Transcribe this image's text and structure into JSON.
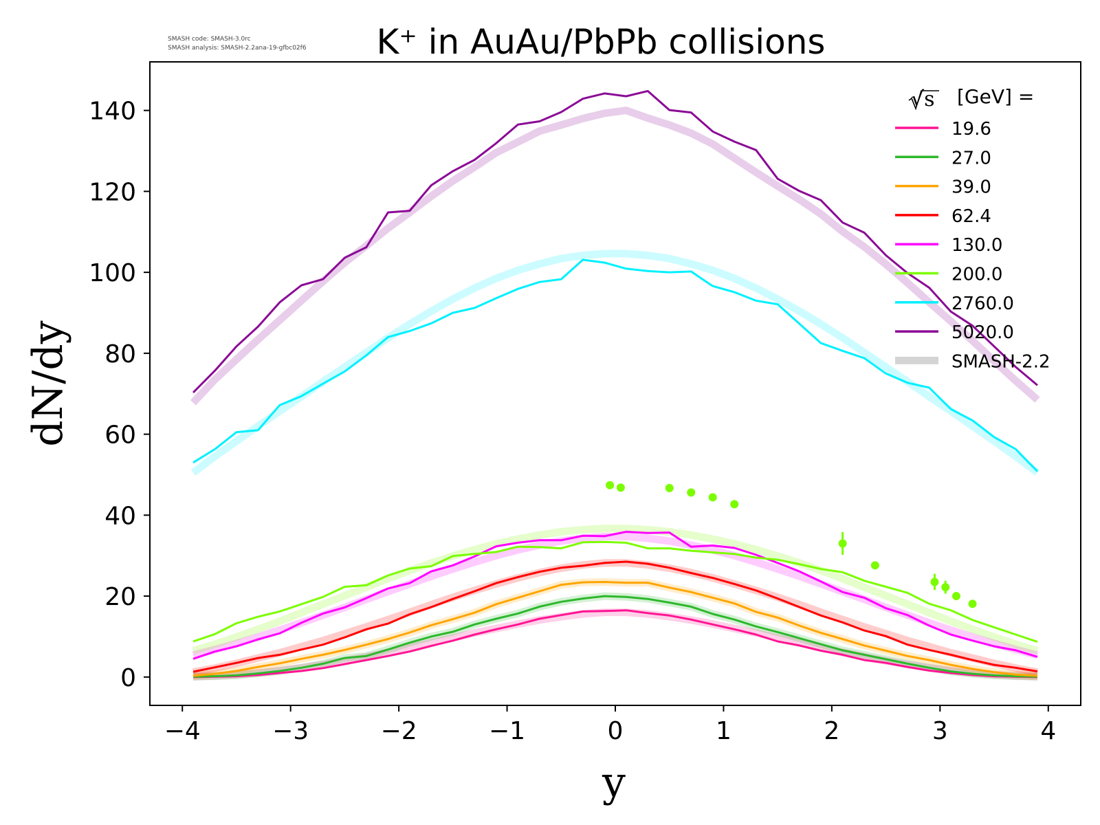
{
  "header_note": {
    "line1": "SMASH code:      SMASH-3.0rc",
    "line2": "SMASH analysis: SMASH-2.2ana-19-gfbc02f6"
  },
  "chart_data": {
    "type": "line",
    "title": "K⁺ in AuAu/PbPb collisions",
    "xlabel": "y",
    "ylabel": "dN/dy",
    "xlim": [
      -4.3,
      4.3
    ],
    "ylim": [
      -7,
      152
    ],
    "xticks": [
      -4,
      -3,
      -2,
      -1,
      0,
      1,
      2,
      3,
      4
    ],
    "xtick_labels": [
      "−4",
      "−3",
      "−2",
      "−1",
      "0",
      "1",
      "2",
      "3",
      "4"
    ],
    "yticks": [
      0,
      20,
      40,
      60,
      80,
      100,
      120,
      140
    ],
    "ytick_labels": [
      "0",
      "20",
      "40",
      "60",
      "80",
      "100",
      "120",
      "140"
    ],
    "legend": {
      "title_symbol": "√s",
      "title_text": "[GeV] =",
      "placement": "top-right",
      "entries": [
        "19.6",
        "27.0",
        "39.0",
        "62.4",
        "130.0",
        "200.0",
        "2760.0",
        "5020.0",
        "SMASH-2.2"
      ]
    },
    "reference_label": "SMASH-2.2",
    "reference_color": "#d4d4d4",
    "x": [
      -3.9,
      -3.7,
      -3.5,
      -3.3,
      -3.1,
      -2.9,
      -2.7,
      -2.5,
      -2.3,
      -2.1,
      -1.9,
      -1.7,
      -1.5,
      -1.3,
      -1.1,
      -0.9,
      -0.7,
      -0.5,
      -0.3,
      -0.1,
      0.1,
      0.3,
      0.5,
      0.7,
      0.9,
      1.1,
      1.3,
      1.5,
      1.7,
      1.9,
      2.1,
      2.3,
      2.5,
      2.7,
      2.9,
      3.1,
      3.3,
      3.5,
      3.7,
      3.9
    ],
    "series": [
      {
        "name": "19.6",
        "color": "#ff1493",
        "values": [
          0.0,
          0.1,
          0.2,
          0.5,
          1.0,
          1.5,
          2.2,
          3.2,
          4.2,
          5.2,
          6.3,
          7.7,
          9.0,
          10.5,
          11.8,
          13.0,
          14.4,
          15.3,
          16.2,
          16.3,
          16.5,
          15.8,
          15.2,
          14.2,
          13.0,
          11.8,
          10.5,
          8.8,
          7.8,
          6.5,
          5.5,
          4.2,
          3.5,
          2.5,
          1.6,
          1.0,
          0.5,
          0.2,
          0.1,
          0.0
        ],
        "ref": [
          0.1,
          0.3,
          0.6,
          1.0,
          1.6,
          2.3,
          3.1,
          4.0,
          5.0,
          6.1,
          7.3,
          8.5,
          9.7,
          10.9,
          12.0,
          13.1,
          14.1,
          14.9,
          15.6,
          16.0,
          16.0,
          15.6,
          14.9,
          14.1,
          13.1,
          12.0,
          10.9,
          9.7,
          8.5,
          7.3,
          6.1,
          5.0,
          4.0,
          3.1,
          2.3,
          1.6,
          1.0,
          0.6,
          0.3,
          0.1
        ]
      },
      {
        "name": "27.0",
        "color": "#2db82d",
        "values": [
          0.1,
          0.2,
          0.4,
          0.9,
          1.5,
          2.3,
          3.3,
          4.7,
          5.2,
          6.8,
          8.5,
          10.0,
          11.2,
          13.0,
          14.4,
          15.7,
          17.4,
          18.6,
          19.4,
          20.0,
          19.8,
          19.3,
          18.4,
          17.4,
          15.6,
          14.2,
          12.5,
          11.1,
          9.6,
          8.1,
          6.6,
          5.5,
          4.4,
          3.3,
          2.3,
          1.4,
          0.8,
          0.4,
          0.2,
          0.1
        ]
      },
      {
        "name": "39.0",
        "color": "#ffa500",
        "values": [
          0.3,
          0.8,
          1.5,
          2.5,
          3.4,
          4.5,
          5.5,
          6.7,
          8.0,
          9.4,
          11.0,
          12.8,
          14.3,
          15.9,
          18.0,
          19.6,
          21.2,
          22.8,
          23.4,
          23.5,
          23.3,
          23.3,
          22.1,
          21.0,
          19.6,
          18.2,
          16.1,
          14.7,
          12.7,
          10.9,
          9.4,
          7.8,
          6.5,
          5.2,
          4.2,
          3.0,
          2.0,
          1.2,
          0.6,
          0.3
        ]
      },
      {
        "name": "62.4",
        "color": "#ff0000",
        "values": [
          1.3,
          2.4,
          3.5,
          4.7,
          5.5,
          6.8,
          8.0,
          9.8,
          11.8,
          13.2,
          15.5,
          17.3,
          19.3,
          21.2,
          23.2,
          24.7,
          26.0,
          27.0,
          27.5,
          28.2,
          28.5,
          28.0,
          27.0,
          25.7,
          24.5,
          23.0,
          21.4,
          19.4,
          17.3,
          15.2,
          13.5,
          11.5,
          10.1,
          8.0,
          6.7,
          5.5,
          4.2,
          3.0,
          2.3,
          1.4
        ],
        "ref": [
          1.2,
          2.2,
          3.4,
          4.7,
          6.0,
          7.5,
          9.0,
          10.7,
          12.4,
          14.2,
          16.0,
          17.9,
          19.7,
          21.4,
          23.0,
          24.5,
          25.8,
          26.9,
          27.7,
          28.2,
          28.2,
          27.7,
          26.9,
          25.8,
          24.5,
          23.0,
          21.4,
          19.7,
          17.9,
          16.0,
          14.2,
          12.4,
          10.7,
          9.0,
          7.5,
          6.0,
          4.7,
          3.4,
          2.2,
          1.2
        ]
      },
      {
        "name": "130.0",
        "color": "#ff00ff",
        "values": [
          4.5,
          6.3,
          7.6,
          9.3,
          10.8,
          13.4,
          15.7,
          17.2,
          19.5,
          21.9,
          23.2,
          26.1,
          27.6,
          29.8,
          32.3,
          33.2,
          33.8,
          33.8,
          34.9,
          34.8,
          35.9,
          35.6,
          35.7,
          32.2,
          32.5,
          31.9,
          30.2,
          28.2,
          26.1,
          23.6,
          21.0,
          19.6,
          17.0,
          15.3,
          12.7,
          10.5,
          9.0,
          7.6,
          6.6,
          5.0
        ],
        "ref": [
          5.4,
          6.8,
          8.3,
          9.9,
          11.6,
          13.4,
          15.3,
          17.2,
          19.2,
          21.1,
          23.0,
          24.9,
          26.7,
          28.4,
          30.0,
          31.4,
          32.6,
          33.6,
          34.3,
          34.7,
          34.7,
          34.3,
          33.6,
          32.6,
          31.4,
          30.0,
          28.4,
          26.7,
          24.9,
          23.0,
          21.1,
          19.2,
          17.2,
          15.3,
          13.4,
          11.6,
          9.9,
          8.3,
          6.8,
          5.4
        ]
      },
      {
        "name": "200.0",
        "color": "#7cfc00",
        "values": [
          8.8,
          10.6,
          13.3,
          14.9,
          16.2,
          18.0,
          19.8,
          22.3,
          22.7,
          25.1,
          26.8,
          27.4,
          29.9,
          30.4,
          30.9,
          32.2,
          32.1,
          31.8,
          33.3,
          33.4,
          33.2,
          31.8,
          31.8,
          31.2,
          30.8,
          30.4,
          29.5,
          29.0,
          27.9,
          26.7,
          25.9,
          23.8,
          22.3,
          20.8,
          18.1,
          16.5,
          14.1,
          12.3,
          10.5,
          8.7
        ],
        "ref": [
          6.5,
          8.1,
          9.9,
          11.8,
          13.8,
          15.9,
          18.0,
          20.1,
          22.2,
          24.3,
          26.3,
          28.2,
          29.9,
          31.5,
          32.9,
          34.1,
          35.1,
          35.9,
          36.4,
          36.7,
          36.7,
          36.4,
          35.9,
          35.1,
          34.1,
          32.9,
          31.5,
          29.9,
          28.2,
          26.3,
          24.3,
          22.2,
          20.1,
          18.0,
          15.9,
          13.8,
          11.8,
          9.9,
          8.1,
          6.5
        ]
      },
      {
        "name": "2760.0",
        "color": "#00f0ff",
        "values": [
          53.0,
          56.3,
          60.5,
          61.0,
          67.2,
          69.4,
          72.5,
          75.5,
          79.5,
          84.0,
          85.5,
          87.4,
          90.0,
          91.2,
          93.6,
          95.9,
          97.6,
          98.3,
          103.1,
          102.4,
          100.9,
          100.3,
          100.0,
          100.2,
          96.6,
          95.1,
          93.0,
          92.1,
          87.3,
          82.5,
          80.6,
          78.8,
          75.0,
          72.7,
          71.5,
          66.2,
          63.4,
          59.3,
          56.3,
          50.8
        ],
        "ref": [
          50.5,
          54.5,
          58.3,
          62.0,
          65.7,
          69.3,
          73.0,
          76.6,
          80.2,
          83.8,
          87.2,
          90.4,
          93.4,
          96.1,
          98.5,
          100.5,
          102.1,
          103.4,
          104.2,
          104.6,
          104.6,
          104.2,
          103.4,
          102.1,
          100.5,
          98.5,
          96.1,
          93.4,
          90.4,
          87.2,
          83.8,
          80.2,
          76.6,
          73.0,
          69.3,
          65.7,
          62.0,
          58.3,
          54.5,
          50.5
        ]
      },
      {
        "name": "5020.0",
        "color": "#8b0a96",
        "values": [
          70.3,
          75.7,
          81.7,
          86.6,
          92.6,
          96.8,
          98.3,
          103.6,
          106.2,
          114.8,
          115.2,
          121.5,
          125.0,
          127.8,
          131.9,
          136.5,
          137.3,
          139.6,
          142.9,
          144.2,
          143.5,
          144.8,
          140.1,
          139.5,
          134.8,
          132.3,
          130.2,
          123.1,
          120.1,
          117.8,
          112.3,
          109.8,
          104.2,
          99.8,
          96.2,
          90.3,
          86.8,
          81.7,
          76.6,
          72.1
        ],
        "ref": [
          67.8,
          73.5,
          78.5,
          83.4,
          88.2,
          93.0,
          97.8,
          102.4,
          106.6,
          110.9,
          114.8,
          118.8,
          122.6,
          126.0,
          129.6,
          132.2,
          134.9,
          136.4,
          138.0,
          139.3,
          140.0,
          138.1,
          136.4,
          134.4,
          131.7,
          128.2,
          124.7,
          121.3,
          118.0,
          114.4,
          110.1,
          106.3,
          102.0,
          97.4,
          92.6,
          87.9,
          83.1,
          78.1,
          73.2,
          68.5
        ]
      }
    ],
    "experimental_200": {
      "color": "#7cfc00",
      "points": [
        {
          "x": -0.05,
          "y": 47.4,
          "err": 0.5
        },
        {
          "x": 0.05,
          "y": 46.8,
          "err": 0.5
        },
        {
          "x": 0.5,
          "y": 46.7,
          "err": 0.5
        },
        {
          "x": 0.7,
          "y": 45.6,
          "err": 0.5
        },
        {
          "x": 0.9,
          "y": 44.4,
          "err": 0.5
        },
        {
          "x": 1.1,
          "y": 42.7,
          "err": 0.5
        },
        {
          "x": 2.1,
          "y": 33.0,
          "err": 2.8
        },
        {
          "x": 2.4,
          "y": 27.6,
          "err": 0.8
        },
        {
          "x": 2.95,
          "y": 23.5,
          "err": 2.0
        },
        {
          "x": 3.05,
          "y": 22.2,
          "err": 1.6
        },
        {
          "x": 3.15,
          "y": 20.0,
          "err": 0.8
        },
        {
          "x": 3.3,
          "y": 18.1,
          "err": 0.6
        }
      ]
    }
  }
}
